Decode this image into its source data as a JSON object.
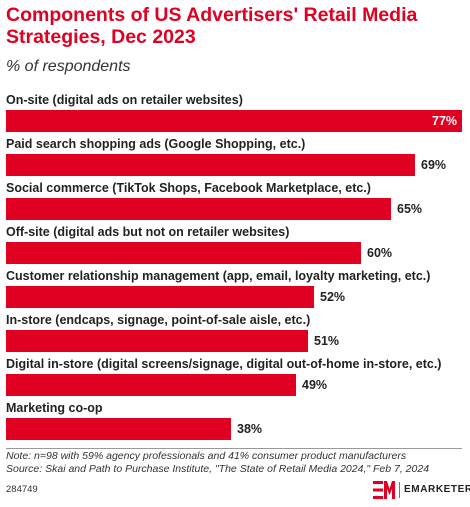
{
  "header": {
    "title": "Components of US Advertisers' Retail Media Strategies, Dec 2023",
    "subtitle": "% of respondents"
  },
  "chart_data": {
    "type": "bar",
    "orientation": "horizontal",
    "title": "Components of US Advertisers' Retail Media Strategies, Dec 2023",
    "subtitle": "% of respondents",
    "categories": [
      "On-site (digital ads on retailer websites)",
      "Paid search shopping ads (Google Shopping, etc.)",
      "Social commerce (TikTok Shops, Facebook Marketplace, etc.)",
      "Off-site (digital ads but not on retailer websites)",
      "Customer relationship management (app, email, loyalty marketing, etc.)",
      "In-store (endcaps, signage, point-of-sale aisle, etc.)",
      "Digital in-store (digital screens/signage, digital out-of-home in-store, etc.)",
      "Marketing co-op"
    ],
    "values": [
      77,
      69,
      65,
      60,
      52,
      51,
      49,
      38
    ],
    "value_labels": [
      "77%",
      "69%",
      "65%",
      "60%",
      "52%",
      "51%",
      "49%",
      "38%"
    ],
    "xlim": [
      0,
      77
    ],
    "grid": false,
    "bar_color": "#e00022"
  },
  "footer": {
    "note": "Note: n=98 with 59% agency professionals and 41% consumer product manufacturers",
    "source": "Source: Skai and Path to Purchase Institute, \"The State of Retail Media 2024,\" Feb 7, 2024",
    "chart_id": "284749",
    "brand_name": "EMARKETER"
  },
  "colors": {
    "accent": "#e00022",
    "text": "#222222"
  }
}
